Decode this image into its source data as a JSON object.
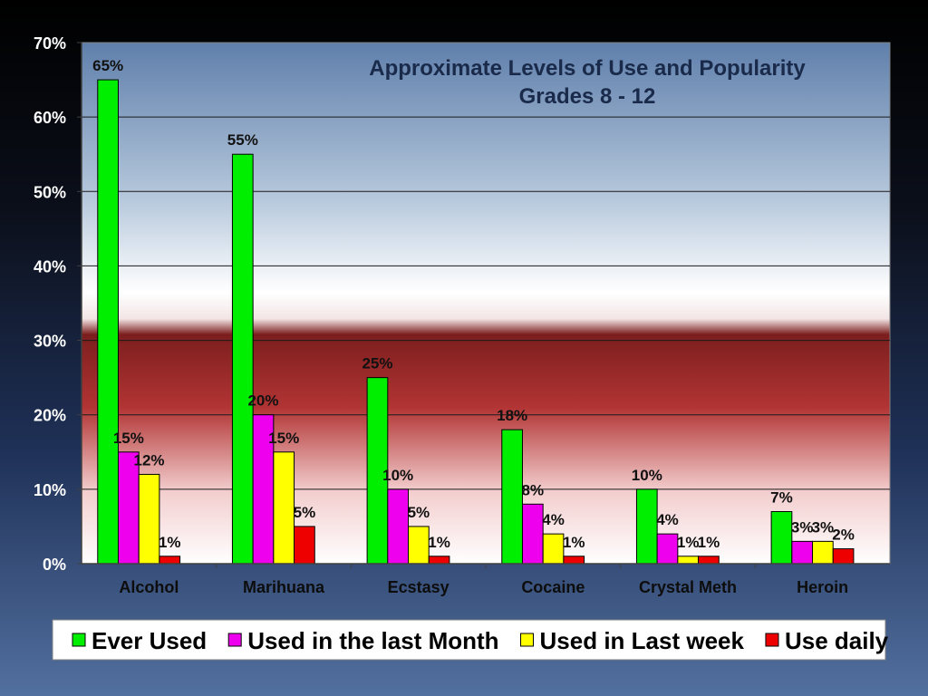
{
  "chart_data": {
    "type": "bar",
    "title": "Approximate Levels of Use and Popularity",
    "subtitle": "Grades 8 - 12",
    "categories": [
      "Alcohol",
      "Marihuana",
      "Ecstasy",
      "Cocaine",
      "Crystal Meth",
      "Heroin"
    ],
    "series": [
      {
        "name": "Ever Used",
        "color": "#00ee00",
        "values": [
          65,
          55,
          25,
          18,
          10,
          7
        ],
        "labels": [
          "65%",
          "55%",
          "25%",
          "18%",
          "10%",
          "7%"
        ]
      },
      {
        "name": "Used in the last Month",
        "color": "#ee00ee",
        "values": [
          15,
          20,
          10,
          8,
          4,
          3
        ],
        "labels": [
          "15%",
          "20%",
          "10%",
          "8%",
          "4%",
          "3%"
        ]
      },
      {
        "name": "Used in Last week",
        "color": "#ffff00",
        "values": [
          12,
          15,
          5,
          4,
          1,
          3
        ],
        "labels": [
          "12%",
          "15%",
          "5%",
          "4%",
          "1%",
          "3%"
        ]
      },
      {
        "name": "Use daily",
        "color": "#ee0000",
        "values": [
          1,
          5,
          1,
          1,
          1,
          2
        ],
        "labels": [
          "1%",
          "5%",
          "1%",
          "1%",
          "1%",
          "2%"
        ]
      }
    ],
    "yticks": [
      "0%",
      "10%",
      "20%",
      "30%",
      "40%",
      "50%",
      "60%",
      "70%"
    ],
    "ylim": [
      0,
      70
    ],
    "grid": true,
    "legend": "bottom"
  }
}
